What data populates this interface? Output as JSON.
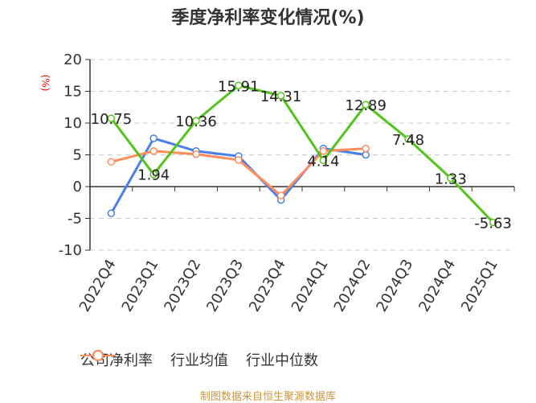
{
  "title": "季度净利率变化情况(%)",
  "unit_label": "(%)",
  "source": "制图数据来自恒生聚源数据库",
  "colors": {
    "company": "#52c41a",
    "industry_avg": "#4a7ee8",
    "industry_median": "#ff8c5a",
    "source_text": "#c8963c",
    "unit_text": "#ff0000"
  },
  "legend": [
    {
      "label": "公司净利率",
      "color": "#52c41a"
    },
    {
      "label": "行业均值",
      "color": "#4a7ee8"
    },
    {
      "label": "行业中位数",
      "color": "#ff8c5a"
    }
  ],
  "chart_data": {
    "type": "line",
    "title": "季度净利率变化情况(%)",
    "xlabel": "",
    "ylabel": "(%)",
    "ylim": [
      -10,
      20
    ],
    "yticks": [
      -10,
      -5,
      0,
      5,
      10,
      15,
      20
    ],
    "grid": true,
    "legend_position": "bottom",
    "categories": [
      "2022Q4",
      "2023Q1",
      "2023Q2",
      "2023Q3",
      "2023Q4",
      "2024Q1",
      "2024Q2",
      "2024Q3",
      "2024Q4",
      "2025Q1"
    ],
    "series": [
      {
        "name": "公司净利率",
        "values": [
          10.75,
          1.94,
          10.36,
          15.91,
          14.31,
          4.14,
          12.89,
          7.48,
          1.33,
          -5.63
        ],
        "labels": [
          "10.75",
          "1.94",
          "10.36",
          "15.91",
          "14.31",
          "4.14",
          "12.89",
          "7.48",
          "1.33",
          "-5.63"
        ]
      },
      {
        "name": "行业均值",
        "values": [
          -4.2,
          7.6,
          5.6,
          4.8,
          -2.1,
          6.0,
          5.0,
          null,
          null,
          null
        ]
      },
      {
        "name": "行业中位数",
        "values": [
          3.9,
          5.6,
          5.1,
          4.2,
          -1.4,
          5.6,
          6.0,
          null,
          null,
          null
        ]
      }
    ]
  }
}
